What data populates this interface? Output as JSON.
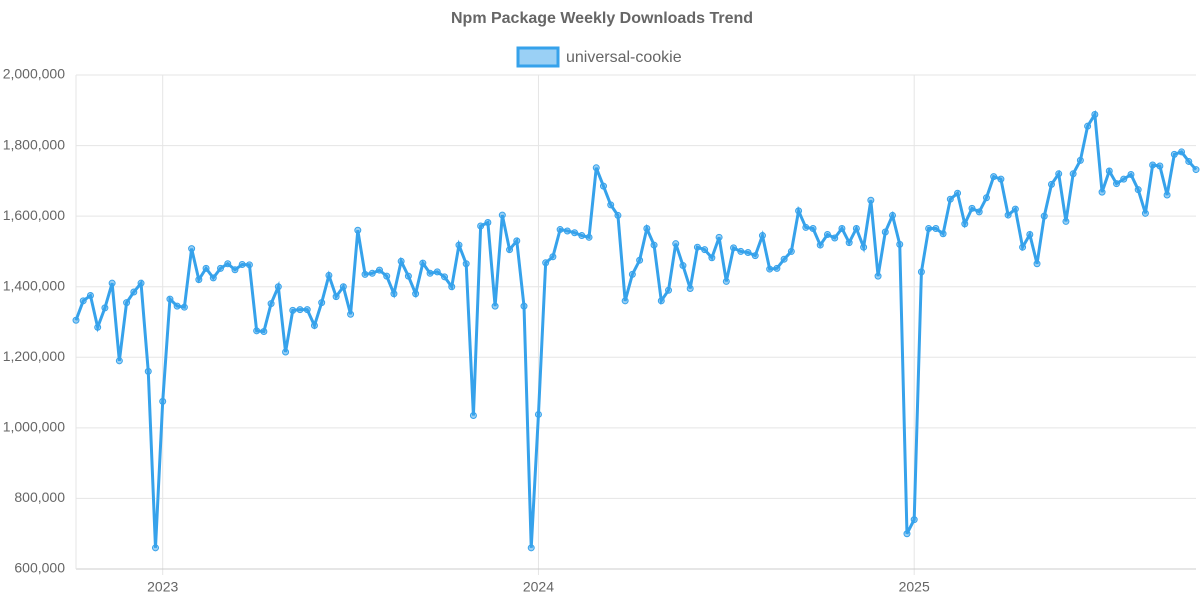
{
  "chart_data": {
    "type": "line",
    "title": "Npm Package Weekly Downloads Trend",
    "categories": [
      null,
      null,
      null,
      null,
      null,
      null,
      null,
      null,
      null,
      null,
      null,
      null,
      "2023",
      null,
      null,
      null,
      null,
      null,
      null,
      null,
      null,
      null,
      null,
      null,
      null,
      null,
      null,
      null,
      null,
      null,
      null,
      null,
      null,
      null,
      null,
      null,
      null,
      null,
      null,
      null,
      null,
      null,
      null,
      null,
      null,
      null,
      null,
      null,
      null,
      null,
      null,
      null,
      null,
      null,
      null,
      null,
      null,
      null,
      null,
      null,
      null,
      null,
      null,
      null,
      "2024",
      null,
      null,
      null,
      null,
      null,
      null,
      null,
      null,
      null,
      null,
      null,
      null,
      null,
      null,
      null,
      null,
      null,
      null,
      null,
      null,
      null,
      null,
      null,
      null,
      null,
      null,
      null,
      null,
      null,
      null,
      null,
      null,
      null,
      null,
      null,
      null,
      null,
      null,
      null,
      null,
      null,
      null,
      null,
      null,
      null,
      null,
      null,
      null,
      null,
      null,
      null,
      "2025",
      null,
      null,
      null,
      null,
      null,
      null,
      null,
      null,
      null,
      null,
      null,
      null,
      null,
      null,
      null,
      null,
      null,
      null,
      null,
      null,
      null,
      null,
      null,
      null,
      null,
      null,
      null,
      null,
      null,
      null,
      null,
      null,
      null,
      null,
      null,
      null,
      null,
      null,
      null
    ],
    "series": [
      {
        "name": "universal-cookie",
        "color": "#36a2eb",
        "values": [
          1305000,
          1360000,
          1375000,
          1285000,
          1340000,
          1410000,
          1190000,
          1355000,
          1385000,
          1410000,
          1160000,
          660000,
          1075000,
          1365000,
          1345000,
          1342000,
          1508000,
          1420000,
          1452000,
          1425000,
          1452000,
          1465000,
          1448000,
          1463000,
          1462000,
          1275000,
          1273000,
          1352000,
          1400000,
          1215000,
          1333000,
          1335000,
          1335000,
          1290000,
          1355000,
          1432000,
          1372000,
          1400000,
          1322000,
          1560000,
          1435000,
          1438000,
          1447000,
          1430000,
          1380000,
          1472000,
          1430000,
          1380000,
          1467000,
          1438000,
          1442000,
          1428000,
          1400000,
          1518000,
          1465000,
          1035000,
          1572000,
          1582000,
          1345000,
          1603000,
          1505000,
          1530000,
          1345000,
          660000,
          1038000,
          1468000,
          1485000,
          1562000,
          1558000,
          1553000,
          1545000,
          1540000,
          1737000,
          1685000,
          1632000,
          1602000,
          1360000,
          1435000,
          1475000,
          1565000,
          1518000,
          1360000,
          1390000,
          1522000,
          1460000,
          1395000,
          1512000,
          1505000,
          1482000,
          1540000,
          1415000,
          1510000,
          1500000,
          1497000,
          1488000,
          1545000,
          1450000,
          1452000,
          1478000,
          1500000,
          1615000,
          1568000,
          1565000,
          1518000,
          1548000,
          1538000,
          1565000,
          1525000,
          1565000,
          1512000,
          1645000,
          1430000,
          1555000,
          1602000,
          1520000,
          700000,
          740000,
          1442000,
          1565000,
          1565000,
          1550000,
          1648000,
          1665000,
          1578000,
          1622000,
          1612000,
          1652000,
          1712000,
          1705000,
          1603000,
          1620000,
          1512000,
          1548000,
          1465000,
          1600000,
          1690000,
          1720000,
          1585000,
          1720000,
          1758000,
          1855000,
          1888000,
          1668000,
          1728000,
          1692000,
          1705000,
          1718000,
          1675000,
          1608000,
          1745000,
          1742000,
          1660000,
          1775000,
          1782000,
          1755000,
          1732000
        ]
      }
    ],
    "ylim": [
      600000,
      2000000
    ],
    "yticks": [
      {
        "value": 600000,
        "label": "600,000"
      },
      {
        "value": 800000,
        "label": "800,000"
      },
      {
        "value": 1000000,
        "label": "1,000,000"
      },
      {
        "value": 1200000,
        "label": "1,200,000"
      },
      {
        "value": 1400000,
        "label": "1,400,000"
      },
      {
        "value": 1600000,
        "label": "1,600,000"
      },
      {
        "value": 1800000,
        "label": "1,800,000"
      },
      {
        "value": 2000000,
        "label": "2,000,000"
      }
    ],
    "grid": true,
    "legend": "top"
  }
}
